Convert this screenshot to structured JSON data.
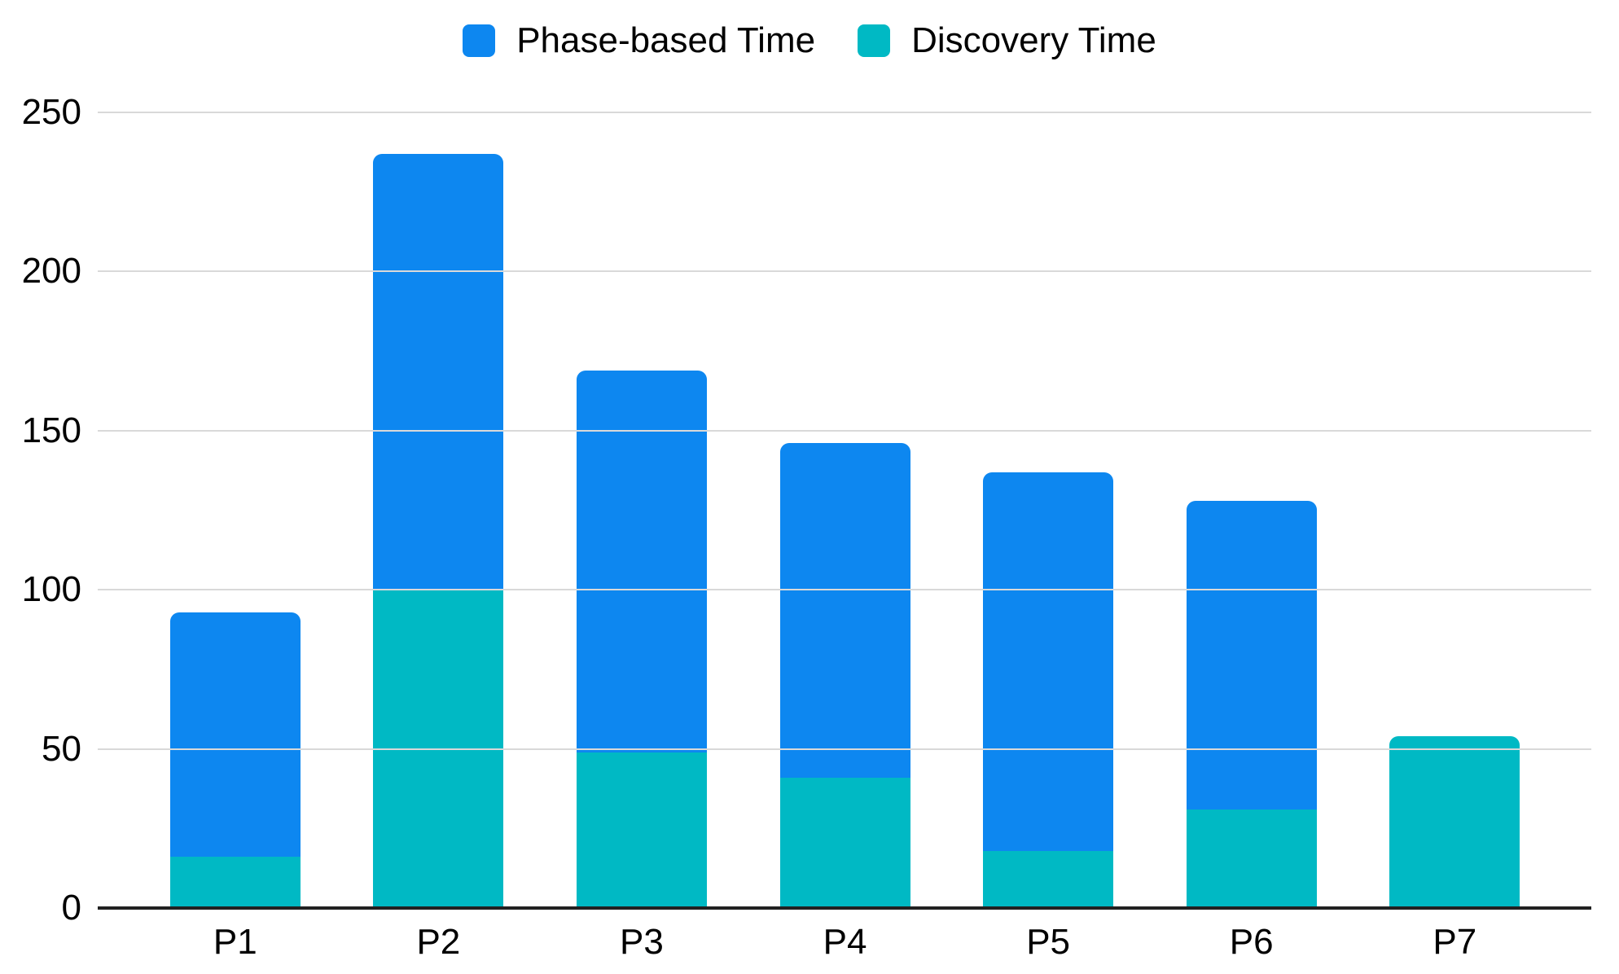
{
  "chart_data": {
    "type": "bar",
    "stacked": true,
    "title": "",
    "xlabel": "",
    "ylabel": "",
    "categories": [
      "P1",
      "P2",
      "P3",
      "P4",
      "P5",
      "P6",
      "P7"
    ],
    "series": [
      {
        "name": "Phase-based Time",
        "color": "#0d87f0",
        "values": [
          77,
          137,
          120,
          105,
          119,
          97,
          0
        ]
      },
      {
        "name": "Discovery Time",
        "color": "#00b9c4",
        "values": [
          16,
          100,
          49,
          41,
          18,
          31,
          54
        ]
      }
    ],
    "stack_order_bottom_to_top": [
      "Discovery Time",
      "Phase-based Time"
    ],
    "stack_totals": [
      93,
      237,
      169,
      146,
      137,
      128,
      54
    ],
    "ylim": [
      0,
      250
    ],
    "yticks": [
      0,
      50,
      100,
      150,
      200,
      250
    ],
    "grid": "horizontal",
    "legend_position": "top-center"
  },
  "legend": {
    "items": [
      {
        "label": "Phase-based Time",
        "color": "#0d87f0"
      },
      {
        "label": "Discovery Time",
        "color": "#00b9c4"
      }
    ]
  },
  "axes": {
    "y_tick_labels": [
      "0",
      "50",
      "100",
      "150",
      "200",
      "250"
    ],
    "x_tick_labels": [
      "P1",
      "P2",
      "P3",
      "P4",
      "P5",
      "P6",
      "P7"
    ]
  },
  "colors": {
    "phase_based_time": "#0d87f0",
    "discovery_time": "#00b9c4",
    "gridline": "#d9d9d9",
    "axis_line": "#212121",
    "text": "#000000",
    "background": "#ffffff"
  }
}
